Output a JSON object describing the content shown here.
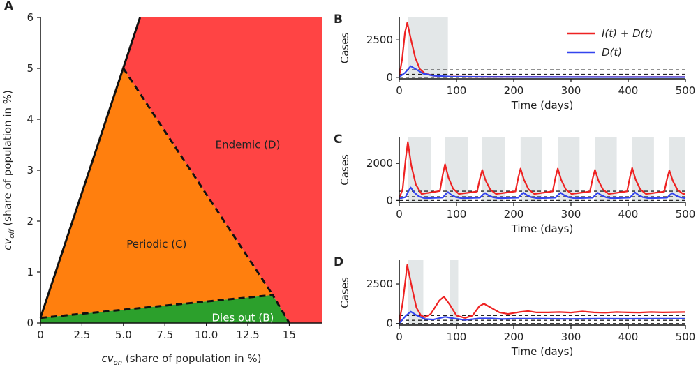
{
  "chart_data": [
    {
      "panel": "A",
      "type": "area",
      "xlabel": {
        "main": "cv",
        "sub": "on",
        "rest": " (share of population in %)"
      },
      "ylabel": {
        "main": "cv",
        "sub": "off",
        "rest": " (share of population in %)"
      },
      "xlim": [
        0,
        17
      ],
      "ylim": [
        0,
        6
      ],
      "x_ticks": [
        0,
        2.5,
        5,
        7.5,
        10,
        12.5,
        15
      ],
      "x_tick_labels": [
        "0",
        "2.5",
        "5.0",
        "7.5",
        "10.0",
        "12.5",
        "15"
      ],
      "y_ticks": [
        0,
        1,
        2,
        3,
        4,
        5,
        6
      ],
      "y_tick_labels": [
        "0",
        "1",
        "2",
        "3",
        "4",
        "5",
        "6"
      ],
      "regions": [
        {
          "name": "Endemic (D)",
          "color": "#ff4444",
          "polygon": [
            [
              6,
              6
            ],
            [
              17,
              6
            ],
            [
              17,
              0
            ],
            [
              15,
              0
            ],
            [
              14,
              0.55
            ],
            [
              5,
              5
            ]
          ],
          "label_pos": [
            12.5,
            3.5
          ]
        },
        {
          "name": "Periodic (C)",
          "color": "#ff7f0e",
          "polygon": [
            [
              0,
              0.1
            ],
            [
              5,
              5
            ],
            [
              14,
              0.55
            ]
          ],
          "label_pos": [
            7,
            1.55
          ]
        },
        {
          "name": "Dies out (B)",
          "color": "#2ca02c",
          "polygon": [
            [
              0,
              0
            ],
            [
              0,
              0.1
            ],
            [
              14,
              0.55
            ],
            [
              15,
              0
            ]
          ],
          "label_pos": [
            12.2,
            0.1
          ]
        }
      ],
      "solid_boundary": [
        [
          0,
          0.1
        ],
        [
          6,
          6
        ]
      ],
      "dashed_boundaries": [
        [
          [
            5,
            5
          ],
          [
            14,
            0.55
          ]
        ],
        [
          [
            0,
            0.1
          ],
          [
            14,
            0.55
          ],
          [
            15,
            0
          ]
        ]
      ]
    },
    {
      "panel": "B",
      "type": "line",
      "xlabel": "Time (days)",
      "ylabel": "Cases",
      "xlim": [
        0,
        500
      ],
      "ylim": [
        -100,
        4000
      ],
      "x_ticks": [
        0,
        100,
        200,
        300,
        400,
        500
      ],
      "y_ticks": [
        0,
        2500
      ],
      "shaded_intervals": [
        [
          15,
          85
        ]
      ],
      "thresholds": [
        0,
        200,
        500
      ],
      "series": [
        {
          "name": "I(t) + D(t)",
          "color": "#ee2222",
          "points": [
            [
              0,
              100
            ],
            [
              5,
              1200
            ],
            [
              10,
              3000
            ],
            [
              14,
              3650
            ],
            [
              20,
              2600
            ],
            [
              28,
              1300
            ],
            [
              36,
              550
            ],
            [
              45,
              250
            ],
            [
              60,
              110
            ],
            [
              80,
              60
            ],
            [
              120,
              40
            ],
            [
              200,
              30
            ],
            [
              300,
              25
            ],
            [
              400,
              22
            ],
            [
              500,
              20
            ]
          ]
        },
        {
          "name": "D(t)",
          "color": "#3344ee",
          "points": [
            [
              0,
              20
            ],
            [
              10,
              300
            ],
            [
              20,
              750
            ],
            [
              30,
              520
            ],
            [
              42,
              250
            ],
            [
              60,
              110
            ],
            [
              90,
              50
            ],
            [
              150,
              30
            ],
            [
              250,
              22
            ],
            [
              400,
              18
            ],
            [
              500,
              16
            ]
          ]
        }
      ],
      "legend": {
        "entries": [
          "I(t) + D(t)",
          "D(t)"
        ],
        "placement": "top-right"
      }
    },
    {
      "panel": "C",
      "type": "line",
      "xlabel": "Time (days)",
      "ylabel": "Cases",
      "xlim": [
        0,
        500
      ],
      "ylim": [
        -100,
        3400
      ],
      "x_ticks": [
        0,
        100,
        200,
        300,
        400,
        500
      ],
      "y_ticks": [
        0,
        2000
      ],
      "shaded_intervals": [
        [
          15,
          55
        ],
        [
          80,
          120
        ],
        [
          145,
          185
        ],
        [
          212,
          250
        ],
        [
          277,
          315
        ],
        [
          342,
          380
        ],
        [
          407,
          445
        ],
        [
          472,
          500
        ]
      ],
      "thresholds": [
        0,
        200,
        500
      ],
      "series": [
        {
          "name": "I(t) + D(t)",
          "color": "#ee2222",
          "peaks": [
            [
              15,
              3150
            ],
            [
              80,
              1950
            ],
            [
              145,
              1650
            ],
            [
              212,
              1720
            ],
            [
              277,
              1720
            ],
            [
              342,
              1650
            ],
            [
              407,
              1750
            ],
            [
              472,
              1620
            ]
          ],
          "baseline": 350
        },
        {
          "name": "D(t)",
          "color": "#3344ee",
          "peaks": [
            [
              20,
              700
            ],
            [
              85,
              450
            ],
            [
              150,
              400
            ],
            [
              217,
              420
            ],
            [
              282,
              420
            ],
            [
              347,
              410
            ],
            [
              412,
              430
            ],
            [
              477,
              400
            ]
          ],
          "baseline": 120
        }
      ]
    },
    {
      "panel": "D",
      "type": "line",
      "xlabel": "Time (days)",
      "ylabel": "Cases",
      "xlim": [
        0,
        500
      ],
      "ylim": [
        -100,
        4000
      ],
      "x_ticks": [
        0,
        100,
        200,
        300,
        400,
        500
      ],
      "y_ticks": [
        0,
        2500
      ],
      "shaded_intervals": [
        [
          15,
          42
        ],
        [
          88,
          103
        ]
      ],
      "thresholds": [
        0,
        200,
        500
      ],
      "series": [
        {
          "name": "I(t) + D(t)",
          "color": "#ee2222",
          "points": [
            [
              0,
              100
            ],
            [
              6,
              1300
            ],
            [
              14,
              3700
            ],
            [
              22,
              2300
            ],
            [
              30,
              1000
            ],
            [
              38,
              500
            ],
            [
              45,
              400
            ],
            [
              55,
              600
            ],
            [
              70,
              1450
            ],
            [
              78,
              1700
            ],
            [
              88,
              1200
            ],
            [
              100,
              500
            ],
            [
              115,
              350
            ],
            [
              128,
              500
            ],
            [
              140,
              1100
            ],
            [
              148,
              1250
            ],
            [
              160,
              1000
            ],
            [
              175,
              700
            ],
            [
              190,
              600
            ],
            [
              210,
              720
            ],
            [
              225,
              780
            ],
            [
              240,
              700
            ],
            [
              260,
              700
            ],
            [
              280,
              720
            ],
            [
              300,
              690
            ],
            [
              320,
              760
            ],
            [
              340,
              700
            ],
            [
              360,
              680
            ],
            [
              380,
              720
            ],
            [
              400,
              700
            ],
            [
              420,
              690
            ],
            [
              440,
              720
            ],
            [
              460,
              700
            ],
            [
              480,
              710
            ],
            [
              500,
              720
            ]
          ]
        },
        {
          "name": "D(t)",
          "color": "#3344ee",
          "points": [
            [
              0,
              20
            ],
            [
              12,
              500
            ],
            [
              20,
              750
            ],
            [
              30,
              520
            ],
            [
              45,
              280
            ],
            [
              60,
              250
            ],
            [
              80,
              420
            ],
            [
              95,
              320
            ],
            [
              115,
              220
            ],
            [
              140,
              320
            ],
            [
              160,
              320
            ],
            [
              180,
              280
            ],
            [
              200,
              300
            ],
            [
              250,
              300
            ],
            [
              300,
              290
            ],
            [
              350,
              300
            ],
            [
              400,
              295
            ],
            [
              450,
              300
            ],
            [
              500,
              300
            ]
          ]
        }
      ]
    }
  ]
}
